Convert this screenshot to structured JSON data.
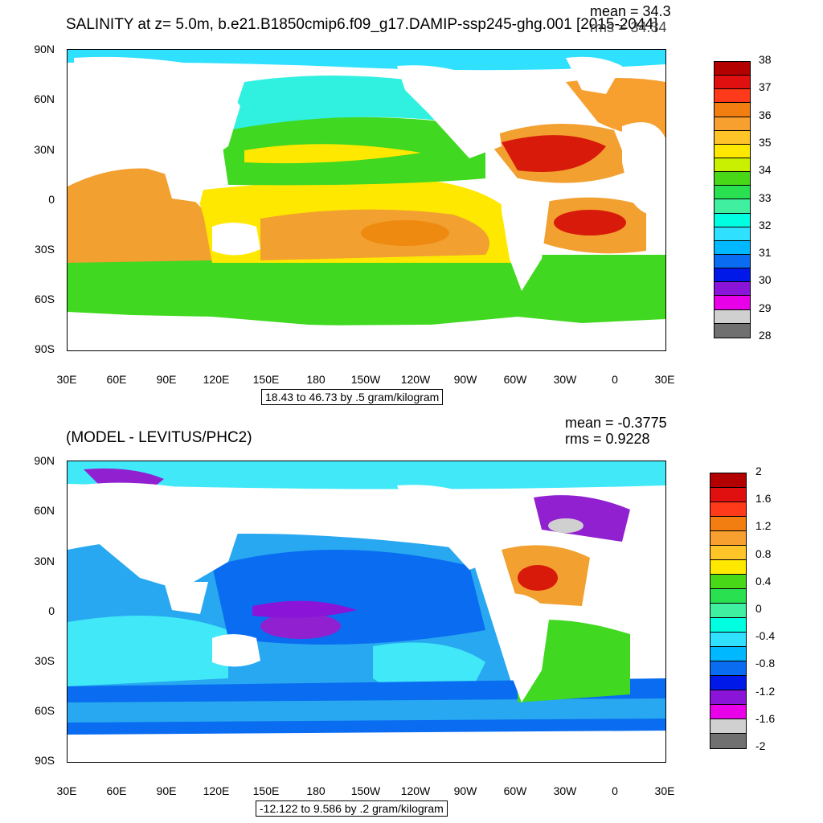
{
  "panels": [
    {
      "title": "SALINITY at z=   5.0m, b.e21.B1850cmip6.f09_g17.DAMIP-ssp245-ghg.001 [2015-2044]",
      "mean": "mean = 34.3",
      "rms": "rms = 34.34",
      "range_note": "18.43 to 46.73 by .5 gram/kilogram",
      "colorbar_labels": [
        "38",
        "37",
        "36",
        "35",
        "34",
        "33",
        "32",
        "31",
        "30",
        "29",
        "28"
      ],
      "colorbar_colors": [
        "#b30000",
        "#e01010",
        "#ff3a1a",
        "#f27d10",
        "#f7a030",
        "#ffc428",
        "#ffe800",
        "#c8f000",
        "#48d818",
        "#28e050",
        "#40f0a0",
        "#00ffe0",
        "#30e0ff",
        "#00b8ff",
        "#0a6cf0",
        "#0018e8",
        "#8a14d8",
        "#e800e8",
        "#d0d0d0",
        "#707070"
      ]
    },
    {
      "title": "(MODEL - LEVITUS/PHC2)",
      "mean": "mean = -0.3775",
      "rms": "rms = 0.9228",
      "range_note": "-12.122 to 9.586 by .2 gram/kilogram",
      "colorbar_labels": [
        "2",
        "1.6",
        "1.2",
        "0.8",
        "0.4",
        "0",
        "-0.4",
        "-0.8",
        "-1.2",
        "-1.6",
        "-2"
      ],
      "colorbar_colors": [
        "#b30000",
        "#e01010",
        "#ff3a1a",
        "#f27d10",
        "#f7a030",
        "#ffc428",
        "#ffe800",
        "#48d818",
        "#28e050",
        "#40f0a0",
        "#00ffe0",
        "#30e0ff",
        "#00b8ff",
        "#0a6cf0",
        "#0018e8",
        "#8a14d8",
        "#e800e8",
        "#d0d0d0",
        "#707070"
      ]
    }
  ],
  "lat_labels": [
    "90N",
    "60N",
    "30N",
    "0",
    "30S",
    "60S",
    "90S"
  ],
  "lon_labels": [
    "30E",
    "60E",
    "90E",
    "120E",
    "150E",
    "180",
    "150W",
    "120W",
    "90W",
    "60W",
    "30W",
    "0",
    "30E"
  ],
  "colors": {
    "land": "#ffffff",
    "salinity_high": "#d81a0a",
    "salinity_orange": "#f2a030",
    "salinity_yellow": "#ffe800",
    "salinity_green": "#40d820",
    "salinity_cyan": "#30f0e0",
    "anomaly_blue": "#28a8f0",
    "anomaly_cyan": "#40e8f8",
    "anomaly_purple": "#9020d0"
  }
}
